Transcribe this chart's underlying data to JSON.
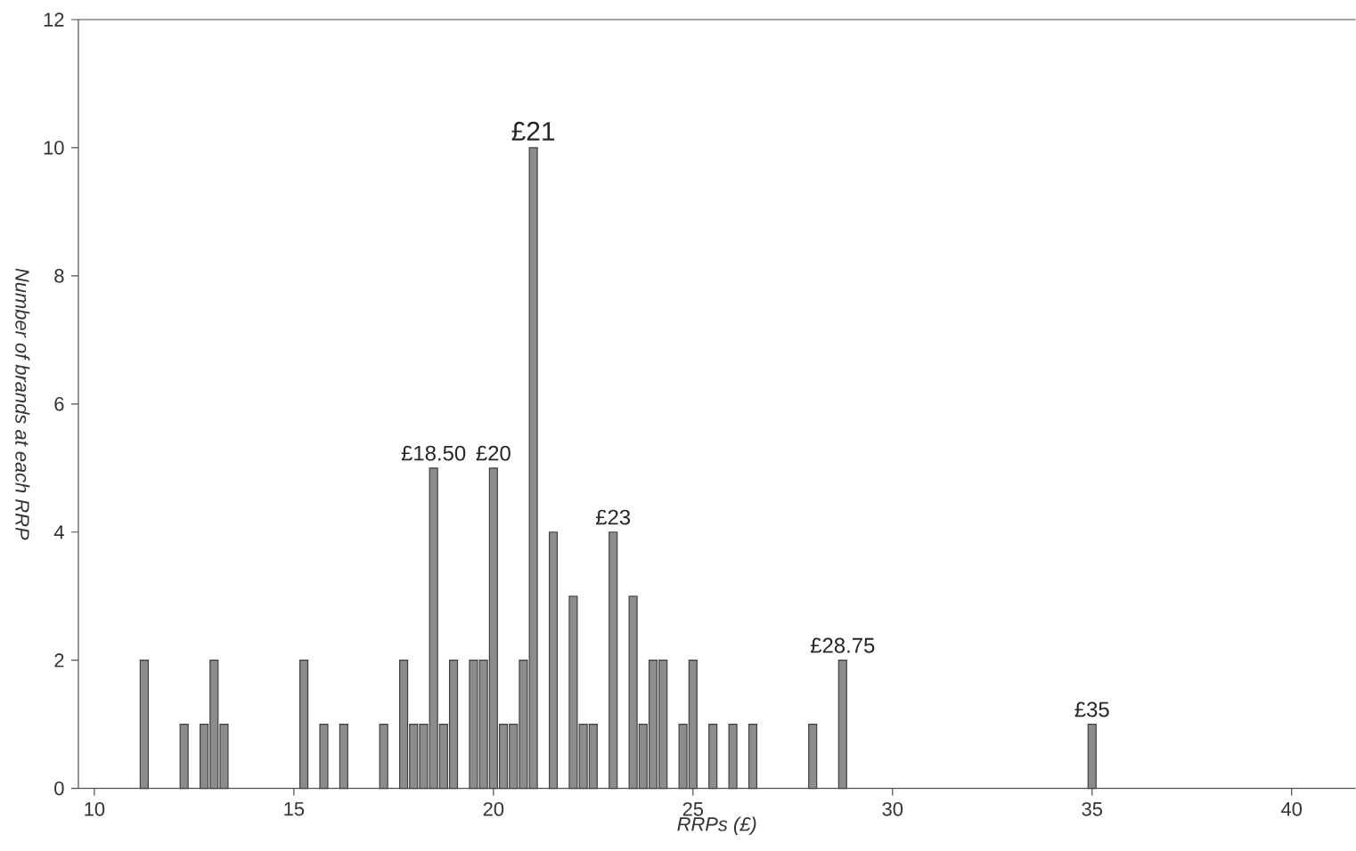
{
  "chart_data": {
    "type": "bar",
    "xlabel": "RRPs (£)",
    "ylabel": "Number of brands at each RRP",
    "x": [
      11.25,
      12.25,
      12.75,
      13.0,
      13.25,
      15.25,
      15.75,
      16.25,
      17.25,
      17.75,
      18.0,
      18.25,
      18.5,
      18.75,
      19.0,
      19.5,
      19.75,
      20.0,
      20.25,
      20.5,
      20.75,
      21.0,
      21.5,
      22.0,
      22.25,
      22.5,
      23.0,
      23.5,
      23.75,
      24.0,
      24.25,
      24.75,
      25.0,
      25.5,
      26.0,
      26.5,
      28.0,
      28.75,
      35.0
    ],
    "values": [
      2,
      1,
      1,
      2,
      1,
      2,
      1,
      1,
      1,
      2,
      1,
      1,
      5,
      1,
      2,
      2,
      2,
      5,
      1,
      1,
      2,
      10,
      4,
      3,
      1,
      1,
      4,
      3,
      1,
      2,
      2,
      1,
      2,
      1,
      1,
      1,
      1,
      2,
      1
    ],
    "color": "#8c8c8c",
    "xlim": [
      9.6,
      41.6
    ],
    "xticks": [
      10,
      15,
      20,
      25,
      30,
      35,
      40
    ],
    "ylim": [
      0,
      12
    ],
    "yticks": [
      0,
      2,
      4,
      6,
      8,
      10,
      12
    ],
    "annotations": [
      {
        "text": "£18.50",
        "x": 18.5,
        "y": 5
      },
      {
        "text": "£20",
        "x": 20,
        "y": 5
      },
      {
        "text": "£21",
        "x": 21,
        "y": 10
      },
      {
        "text": "£23",
        "x": 23,
        "y": 4
      },
      {
        "text": "£28.75",
        "x": 28.75,
        "y": 2
      },
      {
        "text": "£35",
        "x": 35,
        "y": 1
      }
    ]
  }
}
